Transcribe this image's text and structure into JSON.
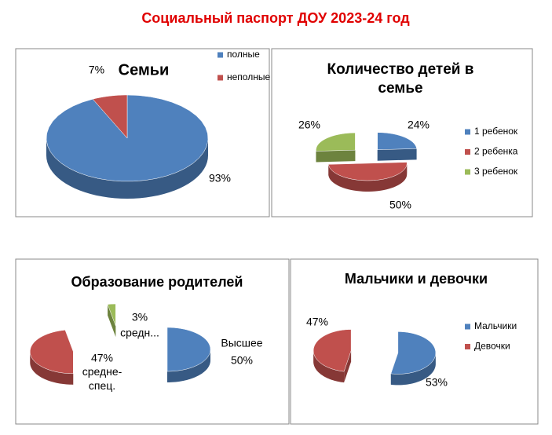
{
  "title": "Социальный паспорт ДОУ 2023-24 год",
  "chart_data": [
    {
      "type": "pie",
      "title": "Семьи",
      "categories": [
        "полные",
        "неполные"
      ],
      "values": [
        93,
        7
      ],
      "value_labels": [
        "93%",
        "7%"
      ],
      "colors": [
        "#4f81bd",
        "#c0504d"
      ],
      "legend": "right"
    },
    {
      "type": "pie",
      "title": "Количество детей в семье",
      "categories": [
        "1 ребенок",
        "2 ребенка",
        "3 ребенок"
      ],
      "values": [
        24,
        50,
        26
      ],
      "value_labels": [
        "24%",
        "50%",
        "26%"
      ],
      "colors": [
        "#4f81bd",
        "#c0504d",
        "#9bbb59"
      ],
      "legend": "right"
    },
    {
      "type": "pie",
      "title": "Образование родителей",
      "categories": [
        "Высшее",
        "средне-спец.",
        "средн..."
      ],
      "values": [
        50,
        47,
        3
      ],
      "value_labels": [
        "50%",
        "47%",
        "3%"
      ],
      "colors": [
        "#4f81bd",
        "#c0504d",
        "#9bbb59"
      ]
    },
    {
      "type": "pie",
      "title": "Мальчики и девочки",
      "categories": [
        "Мальчики",
        "Девочки"
      ],
      "values": [
        53,
        47
      ],
      "value_labels": [
        "53%",
        "47%"
      ],
      "colors": [
        "#4f81bd",
        "#c0504d"
      ],
      "legend": "right"
    }
  ]
}
